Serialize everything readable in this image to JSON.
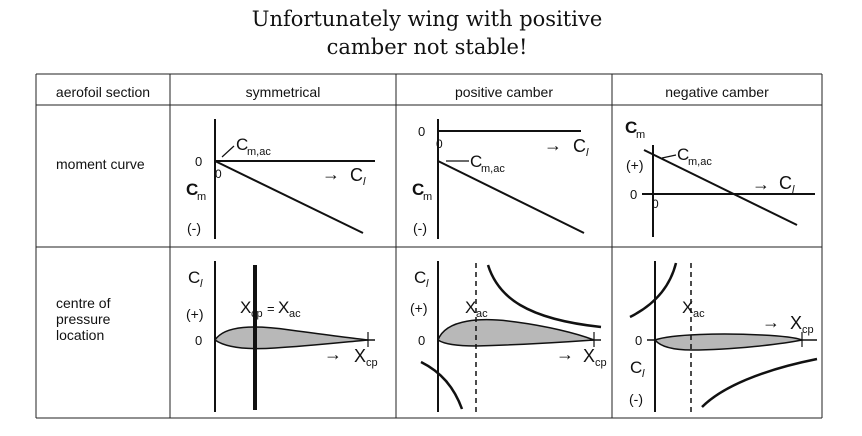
{
  "title": {
    "line1": "Unfortunately wing with positive",
    "line2": "camber not stable!"
  },
  "table": {
    "headers": [
      "aerofoil section",
      "symmetrical",
      "positive camber",
      "negative camber"
    ],
    "rows": [
      {
        "label_lines": [
          "moment curve"
        ]
      },
      {
        "label_lines": [
          "centre of",
          "pressure",
          "location"
        ]
      }
    ]
  },
  "labels": {
    "zero": "0",
    "minus": "(-)",
    "plus": "(+)",
    "cm": "C",
    "cm_sub": "m",
    "cmac": "C",
    "cmac_sub": "m,ac",
    "cl": "C",
    "cl_sub": "l",
    "arrow": "→",
    "xcp": "X",
    "xcp_sub": "cp",
    "xac": "X",
    "xac_sub": "ac",
    "equals": "="
  }
}
